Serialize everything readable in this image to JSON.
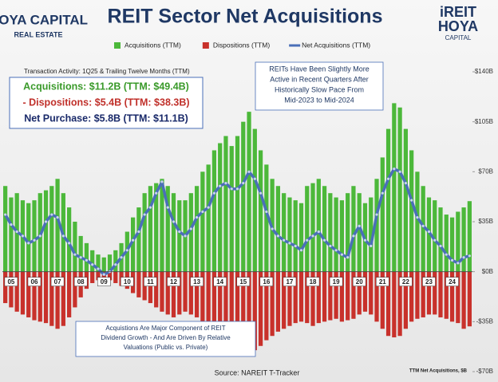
{
  "chart_data": {
    "type": "bar",
    "title": "REIT Sector Net Acquisitions",
    "logo_left": [
      "HOYA CAPITAL",
      "REAL ESTATE"
    ],
    "logo_right": [
      "iREIT",
      "HOYA",
      "CAPITAL"
    ],
    "subtitle": "Transaction Activity: 1Q25 & Trailing Twelve Months (TTM)",
    "summary": [
      {
        "text": "Acquisitions: $11.2B (TTM: $49.4B)",
        "color": "#3a9a2a"
      },
      {
        "text": "- Dispositions: $5.4B (TTM: $38.3B)",
        "color": "#c0302a"
      },
      {
        "text": "Net Purchase: $5.8B (TTM: $11.1B)",
        "color": "#1a2a6a"
      }
    ],
    "annotations": [
      [
        "REITs Have Been Slightly More",
        "Active in Recent Quarters After",
        "Historically Slow Pace From",
        "Mid-2023 to Mid-2024"
      ],
      [
        "Acquistions Are Major Component of REIT",
        "Dividend Growth - And Are Driven By Relative",
        "Valuations (Public vs. Private)"
      ]
    ],
    "source": "Source: NAREIT T-Tracker",
    "axis_note": "TTM Net Acquisitions, $B",
    "categories": [
      null,
      "05",
      null,
      null,
      null,
      "06",
      null,
      null,
      null,
      "07",
      null,
      null,
      null,
      "08",
      null,
      null,
      null,
      "09",
      null,
      null,
      null,
      "10",
      null,
      null,
      null,
      "11",
      null,
      null,
      null,
      "12",
      null,
      null,
      null,
      "13",
      null,
      null,
      null,
      "14",
      null,
      null,
      null,
      "15",
      null,
      null,
      null,
      "16",
      null,
      null,
      null,
      "17",
      null,
      null,
      null,
      "18",
      null,
      null,
      null,
      "19",
      null,
      null,
      null,
      "20",
      null,
      null,
      null,
      "21",
      null,
      null,
      null,
      "22",
      null,
      null,
      null,
      "23",
      null,
      null,
      null,
      "24",
      null,
      null,
      null
    ],
    "series": [
      {
        "name": "Acquisitions (TTM)",
        "type": "bar",
        "color": "#4cb83a",
        "values": [
          60,
          52,
          55,
          50,
          48,
          50,
          55,
          57,
          60,
          65,
          55,
          45,
          35,
          25,
          20,
          15,
          12,
          10,
          12,
          15,
          20,
          28,
          38,
          45,
          55,
          60,
          62,
          65,
          60,
          55,
          50,
          50,
          55,
          60,
          70,
          75,
          85,
          90,
          95,
          88,
          95,
          105,
          112,
          100,
          85,
          75,
          65,
          60,
          55,
          52,
          50,
          48,
          60,
          62,
          65,
          60,
          55,
          52,
          50,
          55,
          60,
          55,
          48,
          52,
          65,
          80,
          100,
          118,
          115,
          100,
          85,
          70,
          60,
          52,
          50,
          45,
          40,
          38,
          42,
          45,
          49.4
        ]
      },
      {
        "name": "Dispositions (TTM)",
        "type": "bar",
        "color": "#c8312b",
        "values": [
          -22,
          -25,
          -28,
          -30,
          -32,
          -34,
          -35,
          -36,
          -38,
          -40,
          -38,
          -32,
          -25,
          -18,
          -12,
          -8,
          -6,
          -5,
          -6,
          -8,
          -10,
          -12,
          -15,
          -18,
          -20,
          -22,
          -25,
          -28,
          -30,
          -32,
          -30,
          -28,
          -30,
          -32,
          -35,
          -38,
          -40,
          -45,
          -48,
          -50,
          -52,
          -55,
          -58,
          -55,
          -52,
          -48,
          -45,
          -42,
          -40,
          -38,
          -36,
          -35,
          -36,
          -38,
          -36,
          -35,
          -34,
          -33,
          -35,
          -34,
          -33,
          -30,
          -28,
          -30,
          -35,
          -40,
          -45,
          -46,
          -45,
          -40,
          -35,
          -33,
          -32,
          -30,
          -30,
          -32,
          -33,
          -35,
          -36,
          -40,
          -38.3
        ]
      },
      {
        "name": "Net Acquisitions (TTM)",
        "type": "line",
        "color": "#4a6fb8",
        "values": [
          40,
          33,
          28,
          25,
          20,
          22,
          25,
          35,
          40,
          38,
          25,
          20,
          12,
          10,
          8,
          5,
          2,
          -2,
          0,
          5,
          10,
          15,
          22,
          28,
          40,
          45,
          55,
          63,
          45,
          35,
          28,
          25,
          30,
          38,
          42,
          45,
          55,
          60,
          62,
          58,
          58,
          62,
          70,
          65,
          55,
          42,
          30,
          25,
          22,
          20,
          18,
          15,
          22,
          25,
          28,
          22,
          18,
          15,
          12,
          10,
          25,
          32,
          22,
          18,
          40,
          55,
          65,
          72,
          70,
          62,
          50,
          38,
          32,
          28,
          22,
          18,
          12,
          8,
          6,
          10,
          11.1
        ]
      }
    ],
    "ylim": [
      -70,
      140
    ],
    "yticks": [
      {
        "value": -70,
        "label": "-$70B"
      },
      {
        "value": -35,
        "label": "-$35B"
      },
      {
        "value": 0,
        "label": "$0B"
      },
      {
        "value": 35,
        "label": "$35B"
      },
      {
        "value": 70,
        "label": "$70B"
      },
      {
        "value": 105,
        "label": "$105B"
      },
      {
        "value": 140,
        "label": "$140B"
      }
    ],
    "grid": false
  }
}
